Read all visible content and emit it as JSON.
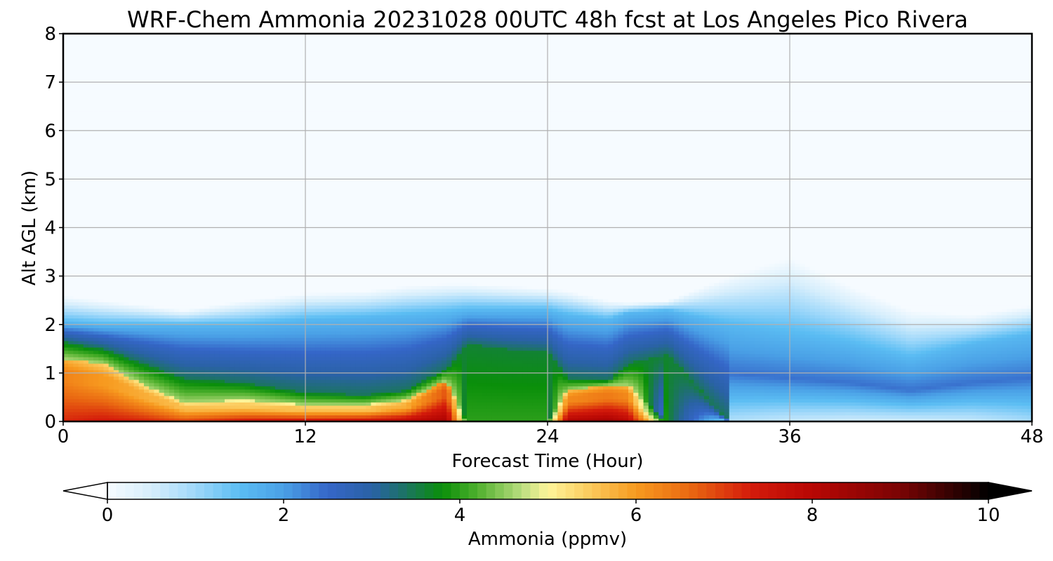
{
  "chart_data": {
    "type": "heatmap",
    "title": "WRF-Chem Ammonia  20231028 00UTC 48h fcst at Los Angeles Pico Rivera",
    "xlabel": "Forecast Time (Hour)",
    "ylabel": "Alt AGL (km)",
    "xlim": [
      0,
      48
    ],
    "ylim": [
      0,
      8
    ],
    "x_ticks": [
      0,
      12,
      24,
      36,
      48
    ],
    "y_ticks": [
      0,
      1,
      2,
      3,
      4,
      5,
      6,
      7,
      8
    ],
    "grid": true,
    "colorbar": {
      "label": "Ammonia  (ppmv)",
      "ticks": [
        0,
        2,
        4,
        6,
        8,
        10
      ],
      "range": [
        0,
        10
      ],
      "extend": "both",
      "position": "bottom"
    },
    "hours": [
      0,
      1,
      2,
      3,
      4,
      5,
      6,
      7,
      8,
      9,
      10,
      11,
      12,
      13,
      14,
      15,
      16,
      17,
      18,
      19,
      19.5,
      20,
      21,
      22,
      23,
      24,
      25,
      26,
      27,
      28,
      29,
      30,
      31,
      32,
      33,
      34,
      35,
      36,
      37,
      38,
      39,
      40,
      41,
      42,
      43,
      44,
      45,
      46,
      47,
      48
    ],
    "profiles": [
      {
        "h": 0,
        "surf": 7.2,
        "plateau": 6.3,
        "top": 1.3,
        "green": 1.65,
        "blue": 2.05,
        "cap": 2.6
      },
      {
        "h": 2,
        "surf": 7.4,
        "plateau": 6.0,
        "top": 1.2,
        "green": 1.5,
        "blue": 2.0,
        "cap": 2.5
      },
      {
        "h": 4,
        "surf": 7.3,
        "plateau": 5.8,
        "top": 0.75,
        "green": 1.2,
        "blue": 2.0,
        "cap": 2.4
      },
      {
        "h": 6,
        "surf": 7.0,
        "plateau": 5.6,
        "top": 0.4,
        "green": 0.9,
        "blue": 2.0,
        "cap": 2.3
      },
      {
        "h": 9,
        "surf": 7.5,
        "plateau": 5.5,
        "top": 0.45,
        "green": 0.8,
        "blue": 2.0,
        "cap": 2.5
      },
      {
        "h": 12,
        "surf": 7.6,
        "plateau": 5.6,
        "top": 0.35,
        "green": 0.6,
        "blue": 2.1,
        "cap": 2.65
      },
      {
        "h": 15,
        "surf": 7.8,
        "plateau": 5.6,
        "top": 0.35,
        "green": 0.55,
        "blue": 2.15,
        "cap": 2.7
      },
      {
        "h": 17,
        "surf": 8.0,
        "plateau": 5.8,
        "top": 0.45,
        "green": 0.65,
        "blue": 2.2,
        "cap": 2.8
      },
      {
        "h": 19,
        "surf": 8.3,
        "plateau": 6.8,
        "top": 0.85,
        "green": 1.1,
        "blue": 2.25,
        "cap": 2.85
      },
      {
        "h": 20,
        "surf": 4.0,
        "plateau": 3.9,
        "top": 0.0,
        "green": 1.6,
        "blue": 2.3,
        "cap": 2.85
      },
      {
        "h": 22,
        "surf": 4.0,
        "plateau": 3.9,
        "top": 0.0,
        "green": 1.5,
        "blue": 2.3,
        "cap": 2.8
      },
      {
        "h": 24,
        "surf": 4.0,
        "plateau": 3.9,
        "top": 0.0,
        "green": 1.45,
        "blue": 2.3,
        "cap": 2.75
      },
      {
        "h": 25,
        "surf": 8.2,
        "plateau": 6.2,
        "top": 0.65,
        "green": 0.9,
        "blue": 2.2,
        "cap": 2.7
      },
      {
        "h": 27,
        "surf": 8.4,
        "plateau": 6.4,
        "top": 0.75,
        "green": 0.85,
        "blue": 2.1,
        "cap": 2.5
      },
      {
        "h": 28,
        "surf": 8.0,
        "plateau": 6.2,
        "top": 0.75,
        "green": 1.2,
        "blue": 2.25,
        "cap": 2.45
      },
      {
        "h": 30,
        "surf": 3.6,
        "plateau": 2.5,
        "top": 0.0,
        "green": 1.4,
        "blue": 2.3,
        "cap": 2.5
      },
      {
        "h": 33,
        "surf": 0.8,
        "plateau": 1.2,
        "top": 0.0,
        "green": 0.0,
        "blue": 2.0,
        "cap": 3.0
      },
      {
        "h": 36,
        "surf": 0.6,
        "plateau": 0.9,
        "top": 0.0,
        "green": 0.0,
        "blue": 1.8,
        "cap": 3.4
      },
      {
        "h": 39,
        "surf": 0.5,
        "plateau": 0.7,
        "top": 0.0,
        "green": 0.0,
        "blue": 1.6,
        "cap": 2.8
      },
      {
        "h": 42,
        "surf": 0.5,
        "plateau": 0.5,
        "top": 0.0,
        "green": 0.0,
        "blue": 1.3,
        "cap": 2.3
      },
      {
        "h": 45,
        "surf": 0.6,
        "plateau": 0.6,
        "top": 0.0,
        "green": 0.0,
        "blue": 1.6,
        "cap": 2.2
      },
      {
        "h": 48,
        "surf": 0.9,
        "plateau": 0.9,
        "top": 0.0,
        "green": 0.0,
        "blue": 1.8,
        "cap": 2.4
      }
    ],
    "colormap": [
      {
        "v": 0.0,
        "c": "#f6fbff"
      },
      {
        "v": 0.5,
        "c": "#d6eefc"
      },
      {
        "v": 1.0,
        "c": "#9fd8fa"
      },
      {
        "v": 1.5,
        "c": "#5bbdf3"
      },
      {
        "v": 2.0,
        "c": "#4aa0e6"
      },
      {
        "v": 2.5,
        "c": "#3566c8"
      },
      {
        "v": 3.0,
        "c": "#2a62a6"
      },
      {
        "v": 3.3,
        "c": "#1f6f73"
      },
      {
        "v": 3.8,
        "c": "#0a8f0a"
      },
      {
        "v": 4.2,
        "c": "#4fb02d"
      },
      {
        "v": 4.7,
        "c": "#b9dd7f"
      },
      {
        "v": 5.0,
        "c": "#fff59a"
      },
      {
        "v": 5.5,
        "c": "#fbc85a"
      },
      {
        "v": 6.0,
        "c": "#f79a1f"
      },
      {
        "v": 6.6,
        "c": "#ea6a12"
      },
      {
        "v": 7.3,
        "c": "#d41b0b"
      },
      {
        "v": 8.0,
        "c": "#b80704"
      },
      {
        "v": 9.0,
        "c": "#7a0404"
      },
      {
        "v": 10.0,
        "c": "#000000"
      }
    ]
  }
}
